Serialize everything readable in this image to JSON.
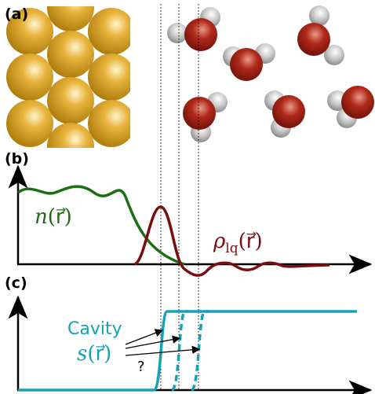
{
  "panels": [
    {
      "label": "(a)"
    },
    {
      "label": "(b)",
      "curves": [
        {
          "symbol": "n",
          "argument": "(r⃗)"
        },
        {
          "symbol": "ρ",
          "subscript": "lq",
          "argument": "(r⃗)"
        }
      ]
    },
    {
      "label": "(c)",
      "curves": [
        {
          "name": "Cavity",
          "symbol": "s",
          "argument": "(r⃗)"
        }
      ],
      "annotation": "?"
    }
  ]
}
